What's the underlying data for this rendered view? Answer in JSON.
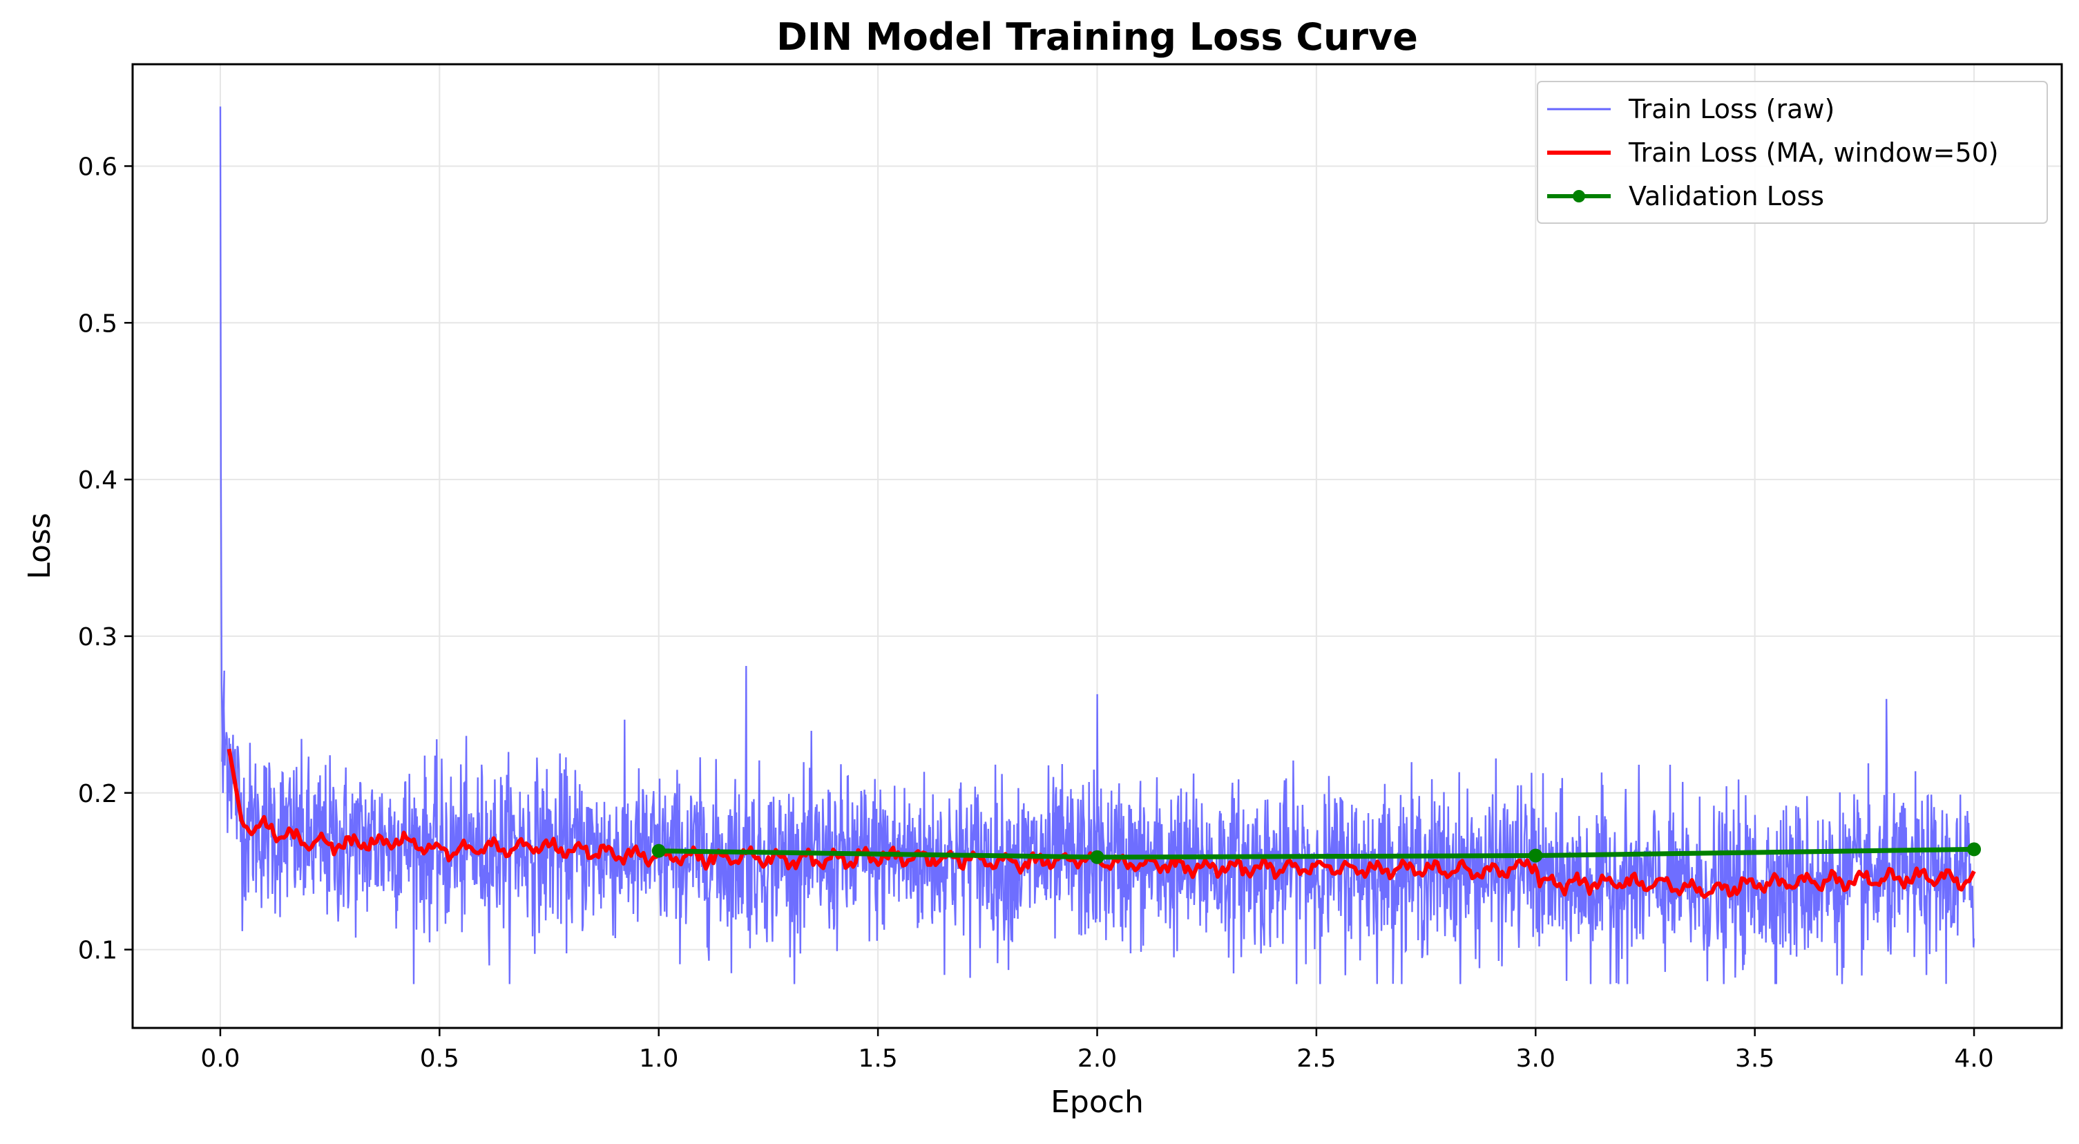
{
  "chart_data": {
    "type": "line",
    "title": "DIN Model Training Loss Curve",
    "xlabel": "Epoch",
    "ylabel": "Loss",
    "xlim": [
      -0.2,
      4.2
    ],
    "ylim": [
      0.05,
      0.665
    ],
    "x_ticks": [
      "0.0",
      "0.5",
      "1.0",
      "1.5",
      "2.0",
      "2.5",
      "3.0",
      "3.5",
      "4.0"
    ],
    "y_ticks": [
      "0.1",
      "0.2",
      "0.3",
      "0.4",
      "0.5",
      "0.6"
    ],
    "grid": true,
    "legend_position": "top-right",
    "colors": {
      "raw": "#6666ff",
      "ma": "#ff0000",
      "validation": "#008000",
      "grid": "#e6e6e6"
    },
    "raw_spikes": [
      {
        "x": 0.0,
        "y": 0.638
      },
      {
        "x": 1.2,
        "y": 0.281
      },
      {
        "x": 2.0,
        "y": 0.263
      },
      {
        "x": 3.8,
        "y": 0.26
      }
    ],
    "train_loss_trend": {
      "x": [
        0.02,
        0.05,
        0.1,
        0.2,
        0.3,
        0.4,
        0.5,
        0.6,
        0.7,
        0.8,
        0.9,
        1.0,
        1.1,
        1.2,
        1.3,
        1.4,
        1.5,
        1.6,
        1.7,
        1.8,
        1.9,
        2.0,
        2.1,
        2.2,
        2.3,
        2.4,
        2.5,
        2.6,
        2.7,
        2.8,
        2.9,
        3.0,
        3.01,
        3.1,
        3.2,
        3.3,
        3.4,
        3.5,
        3.6,
        3.7,
        3.8,
        3.9,
        4.0
      ],
      "y": [
        0.228,
        0.18,
        0.178,
        0.168,
        0.167,
        0.17,
        0.163,
        0.165,
        0.166,
        0.164,
        0.162,
        0.16,
        0.159,
        0.159,
        0.158,
        0.157,
        0.16,
        0.158,
        0.158,
        0.155,
        0.157,
        0.157,
        0.155,
        0.153,
        0.153,
        0.152,
        0.153,
        0.151,
        0.152,
        0.151,
        0.15,
        0.155,
        0.142,
        0.142,
        0.143,
        0.141,
        0.138,
        0.142,
        0.143,
        0.144,
        0.145,
        0.146,
        0.144
      ]
    },
    "series": [
      {
        "name": "Train Loss (raw)"
      },
      {
        "name": "Train Loss (MA, window=50)"
      },
      {
        "name": "Validation Loss",
        "x": [
          1.0,
          2.0,
          3.0,
          4.0
        ],
        "y": [
          0.163,
          0.159,
          0.16,
          0.164
        ]
      }
    ]
  }
}
